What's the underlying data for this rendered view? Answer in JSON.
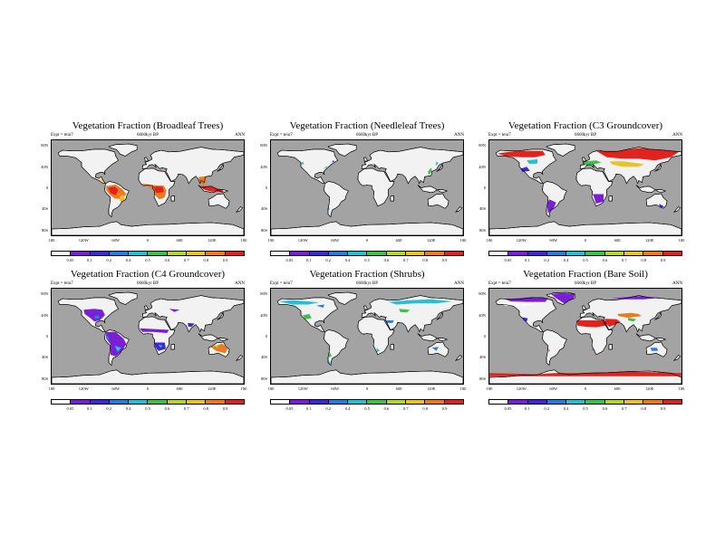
{
  "panels": [
    {
      "title": "Vegetation Fraction (Broadleaf Trees)",
      "expt": "Expt = teiu7",
      "period": "6660kyr BP",
      "season": "ANN",
      "veg_type": "broadleaf",
      "cbar_first": "0.05"
    },
    {
      "title": "Vegetation Fraction (Needleleaf Trees)",
      "expt": "Expt = teiu7",
      "period": "6660kyr BP",
      "season": "ANN",
      "veg_type": "needleleaf",
      "cbar_first": "0.05"
    },
    {
      "title": "Vegetation Fraction (C3 Groundcover)",
      "expt": "Expt = teiu7",
      "period": "6660kyr BP",
      "season": "ANN",
      "veg_type": "c3",
      "cbar_first": "0.05"
    },
    {
      "title": "Vegetation Fraction (C4 Groundcover)",
      "expt": "Expt = teiu7",
      "period": "6660kyr BP",
      "season": "ANN",
      "veg_type": "c4",
      "cbar_first": "0.05"
    },
    {
      "title": "Vegetation Fraction (Shrubs)",
      "expt": "Expt = teiu7",
      "period": "6660kyr BP",
      "season": "ANN",
      "veg_type": "shrubs",
      "cbar_first": "0.05"
    },
    {
      "title": "Vegetation Fraction (Bare Soil)",
      "expt": "Expt = teiu7",
      "period": "6660kyr BP",
      "season": "ANN",
      "veg_type": "bare",
      "cbar_first": "0.05"
    }
  ],
  "lat_ticks": [
    "80N",
    "40N",
    "0",
    "40S",
    "80S"
  ],
  "lon_ticks": [
    "180",
    "120W",
    "60W",
    "0",
    "60E",
    "120E",
    "180"
  ],
  "colorbar": {
    "levels": [
      "0.05",
      "0.1",
      "0.2",
      "0.4",
      "0.5",
      "0.6",
      "0.7",
      "0.8",
      "0.9"
    ],
    "colors": [
      "#ffffff",
      "#7a1fd6",
      "#3d2ad6",
      "#2a7be0",
      "#25c0d6",
      "#3ec04a",
      "#b6d62a",
      "#e9c22a",
      "#ec7a1e",
      "#e0231e"
    ]
  },
  "colors": {
    "ocean": "#a3a3a3",
    "land_empty": "#f2f2f2"
  }
}
